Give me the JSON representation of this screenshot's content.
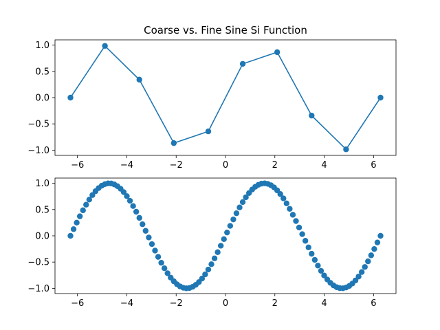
{
  "chart_data": [
    {
      "type": "line",
      "title": "Coarse vs. Fine Sine Si Function",
      "xlabel": "",
      "ylabel": "",
      "xlim": [
        -6.91,
        6.91
      ],
      "ylim": [
        -1.1,
        1.1
      ],
      "xticks": [
        -6,
        -4,
        -2,
        0,
        2,
        4,
        6
      ],
      "xtick_labels": [
        "−6",
        "−4",
        "−2",
        "0",
        "2",
        "4",
        "6"
      ],
      "yticks": [
        1.0,
        0.5,
        0.0,
        -0.5,
        -1.0
      ],
      "ytick_labels": [
        "1.0",
        "0.5",
        "0.0",
        "−0.5",
        "−1.0"
      ],
      "grid": false,
      "line": true,
      "markers": true,
      "color": "#1f77b4",
      "series": [
        {
          "x": [
            -6.2832,
            -4.8869,
            -3.4907,
            -2.0944,
            -0.6981,
            0.6981,
            2.0944,
            3.4907,
            4.8869,
            6.2832
          ],
          "y": [
            0.0,
            0.985,
            0.342,
            -0.866,
            -0.643,
            0.643,
            0.866,
            -0.342,
            -0.985,
            0.0
          ]
        }
      ]
    },
    {
      "type": "scatter",
      "title": "",
      "xlabel": "",
      "ylabel": "",
      "xlim": [
        -6.91,
        6.91
      ],
      "ylim": [
        -1.1,
        1.1
      ],
      "xticks": [
        -6,
        -4,
        -2,
        0,
        2,
        4,
        6
      ],
      "xtick_labels": [
        "−6",
        "−4",
        "−2",
        "0",
        "2",
        "4",
        "6"
      ],
      "yticks": [
        1.0,
        0.5,
        0.0,
        -0.5,
        -1.0
      ],
      "ytick_labels": [
        "1.0",
        "0.5",
        "0.0",
        "−0.5",
        "−1.0"
      ],
      "grid": false,
      "line": false,
      "markers": true,
      "color": "#1f77b4",
      "series": [
        {
          "function": "sin(x)",
          "x_range": [
            -6.2832,
            6.2832
          ],
          "n_points": 100
        }
      ]
    }
  ]
}
